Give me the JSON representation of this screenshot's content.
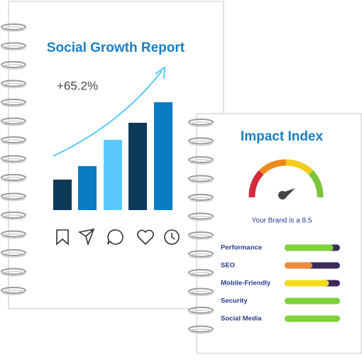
{
  "left_card": {
    "title": "Social Growth Report",
    "growth": "+65.2%"
  },
  "right_card": {
    "title": "Impact Index",
    "score_text": "Your Brand is a 8.5",
    "metrics": [
      "Performance",
      "SEO",
      "Mobile-Friendly",
      "Security",
      "Social Media"
    ]
  }
}
